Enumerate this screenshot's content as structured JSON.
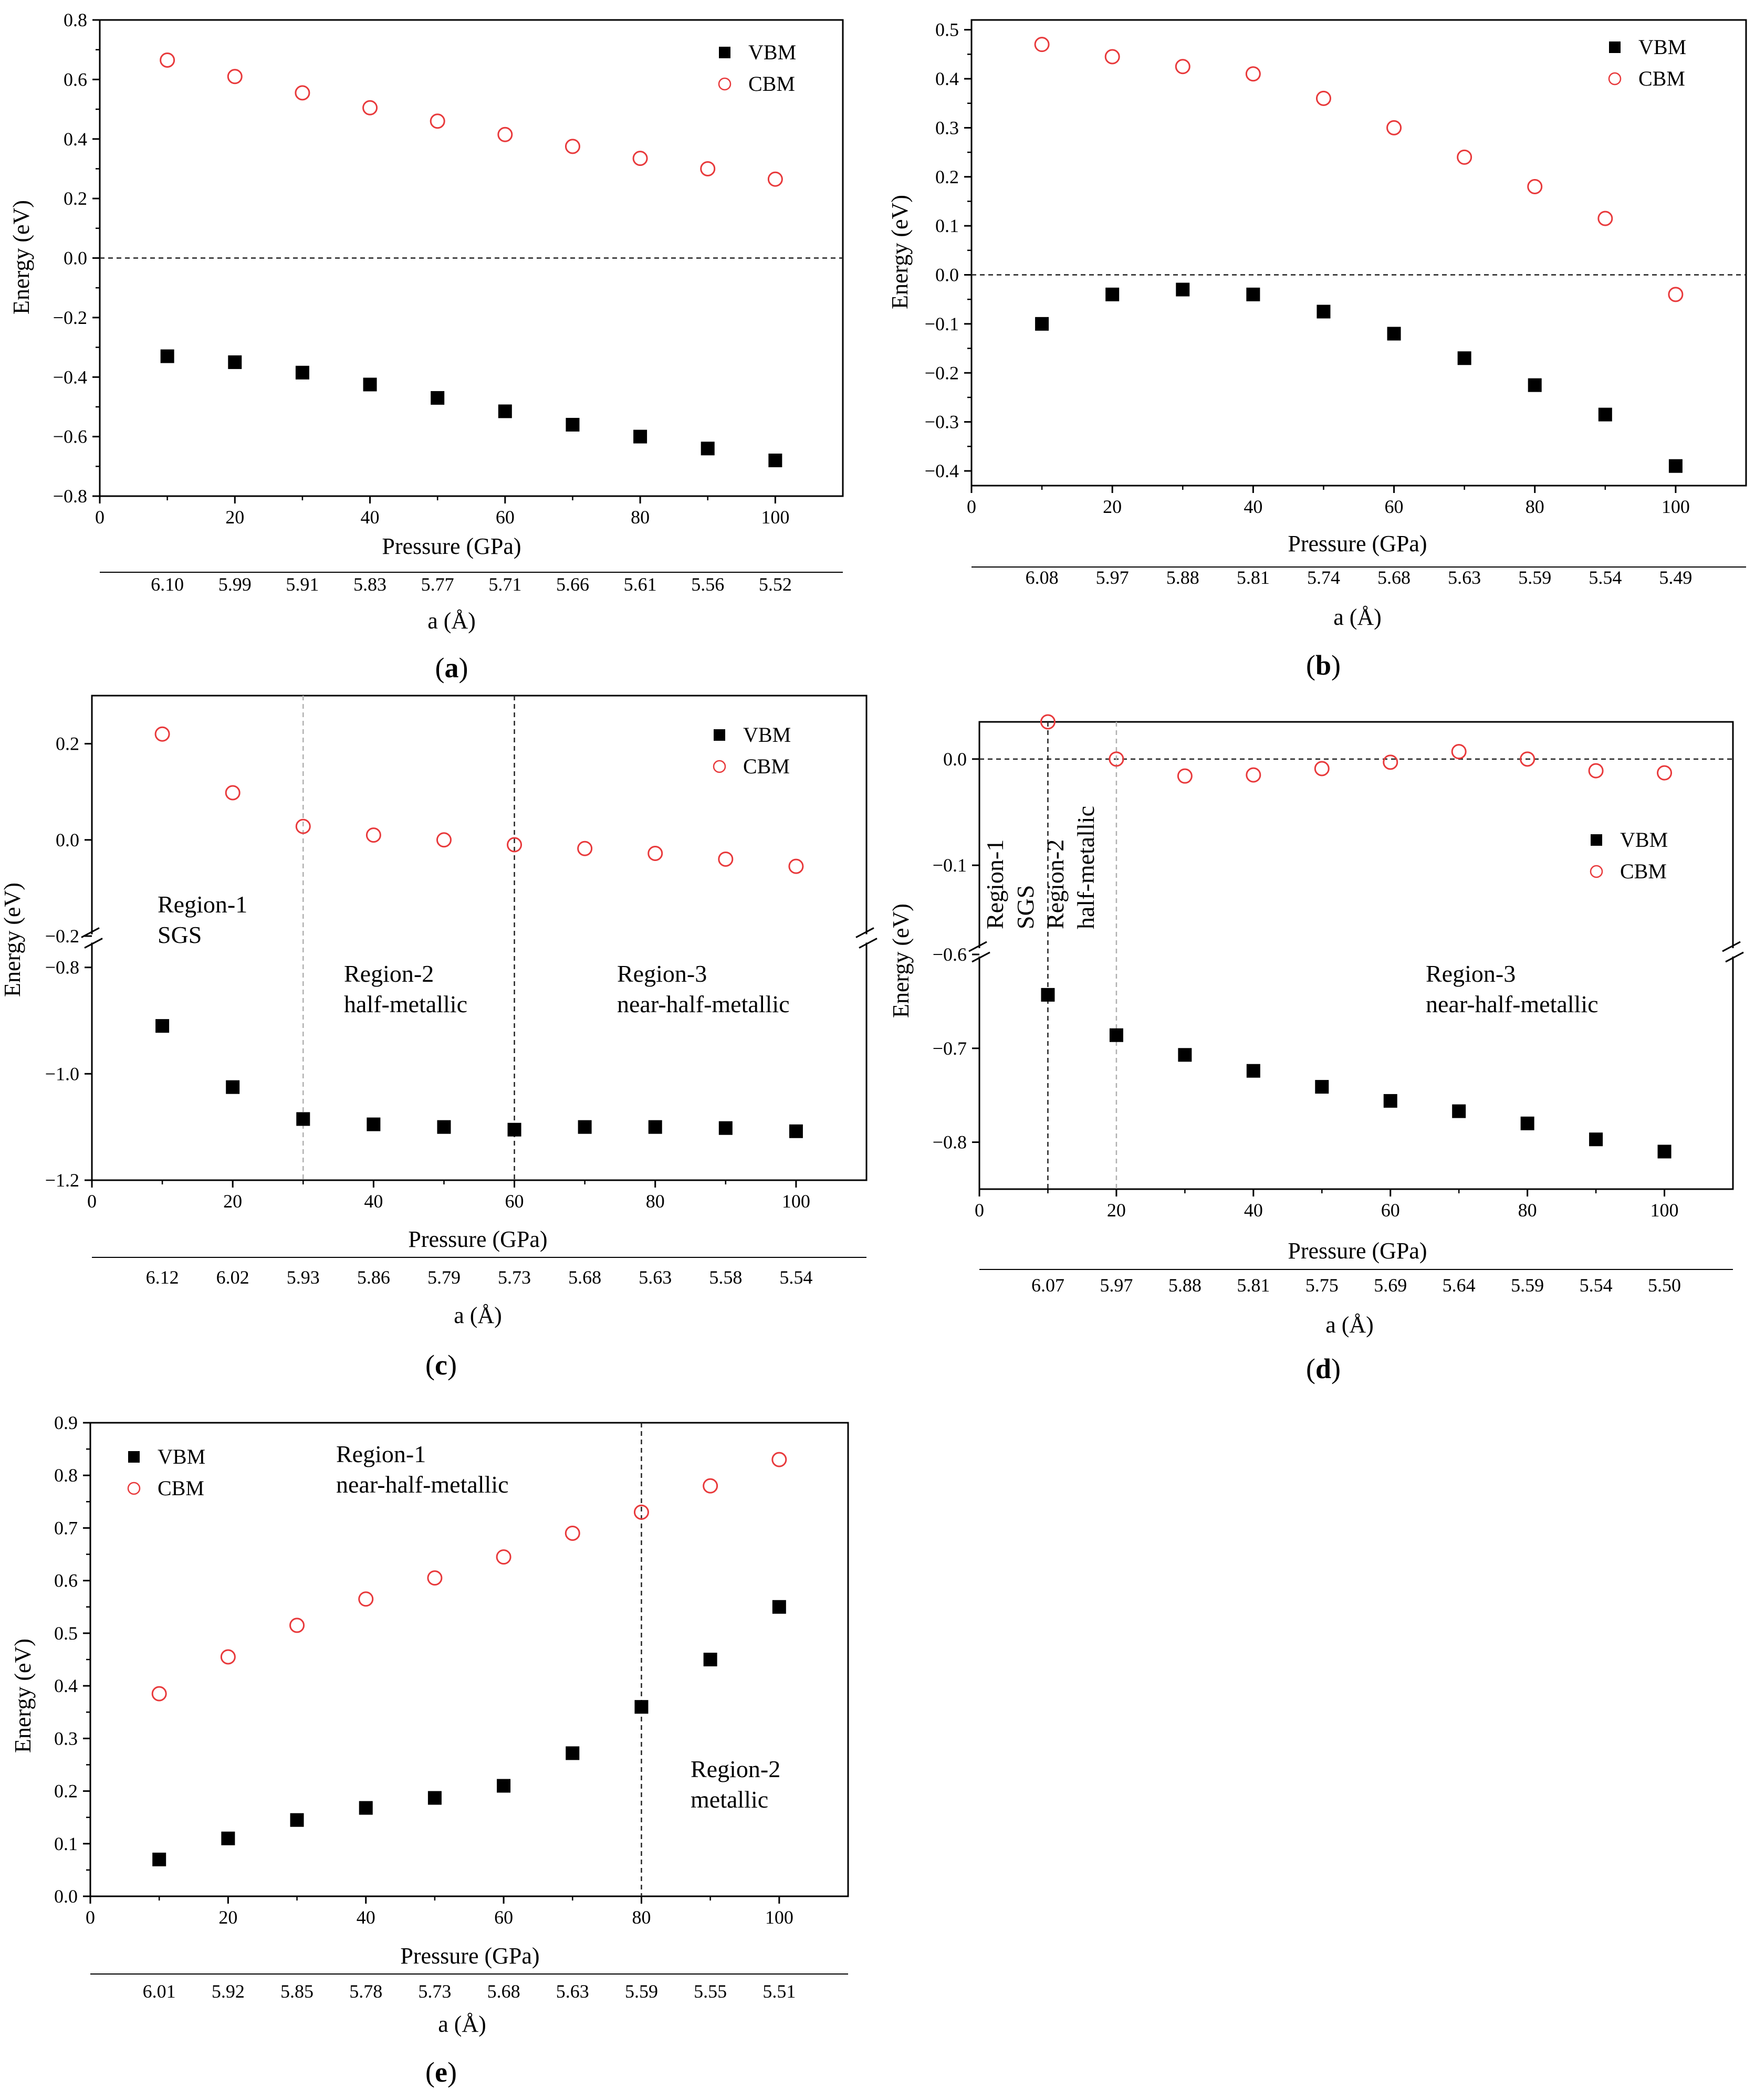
{
  "figure": {
    "panel_count": 5
  },
  "chart_data": [
    {
      "id": "a",
      "type": "scatter",
      "caption": "(a)",
      "caption_letter": "a",
      "xlabel": "Pressure (GPa)",
      "ylabel": "Energy (eV)",
      "secondary_xlabel": "a (Å)",
      "xlim": [
        0,
        110
      ],
      "ylim": [
        -0.8,
        0.8
      ],
      "xticks": [
        "0",
        "20",
        "40",
        "60",
        "80",
        "100"
      ],
      "yticks": [
        "−0.8",
        "−0.6",
        "−0.4",
        "−0.2",
        "0.0",
        "0.2",
        "0.4",
        "0.6",
        "0.8"
      ],
      "lattice_labels": [
        "6.10",
        "5.99",
        "5.91",
        "5.83",
        "5.77",
        "5.71",
        "5.66",
        "5.61",
        "5.56",
        "5.52"
      ],
      "legend": {
        "position": "top-right",
        "entries": [
          "VBM",
          "CBM"
        ]
      },
      "reference_line_y": 0.0,
      "series": [
        {
          "name": "VBM",
          "marker": "filled-square",
          "color": "#000000",
          "x": [
            10,
            20,
            30,
            40,
            50,
            60,
            70,
            80,
            90,
            100
          ],
          "y": [
            -0.33,
            -0.35,
            -0.385,
            -0.425,
            -0.47,
            -0.515,
            -0.56,
            -0.6,
            -0.64,
            -0.68
          ]
        },
        {
          "name": "CBM",
          "marker": "open-circle",
          "color": "#e8393b",
          "x": [
            10,
            20,
            30,
            40,
            50,
            60,
            70,
            80,
            90,
            100
          ],
          "y": [
            0.665,
            0.61,
            0.555,
            0.505,
            0.46,
            0.415,
            0.375,
            0.335,
            0.3,
            0.265
          ]
        }
      ]
    },
    {
      "id": "b",
      "type": "scatter",
      "caption": "(b)",
      "caption_letter": "b",
      "xlabel": "Pressure (GPa)",
      "ylabel": "Energy (eV)",
      "secondary_xlabel": "a (Å)",
      "xlim": [
        0,
        110
      ],
      "ylim": [
        -0.43,
        0.52
      ],
      "xticks": [
        "0",
        "20",
        "40",
        "60",
        "80",
        "100"
      ],
      "yticks": [
        "−0.4",
        "−0.3",
        "−0.2",
        "−0.1",
        "0.0",
        "0.1",
        "0.2",
        "0.3",
        "0.4",
        "0.5"
      ],
      "lattice_labels": [
        "6.08",
        "5.97",
        "5.88",
        "5.81",
        "5.74",
        "5.68",
        "5.63",
        "5.59",
        "5.54",
        "5.49"
      ],
      "legend": {
        "position": "top-right",
        "entries": [
          "VBM",
          "CBM"
        ]
      },
      "reference_line_y": 0.0,
      "series": [
        {
          "name": "VBM",
          "marker": "filled-square",
          "color": "#000000",
          "x": [
            10,
            20,
            30,
            40,
            50,
            60,
            70,
            80,
            90,
            100
          ],
          "y": [
            -0.1,
            -0.04,
            -0.03,
            -0.04,
            -0.075,
            -0.12,
            -0.17,
            -0.225,
            -0.285,
            -0.39
          ]
        },
        {
          "name": "CBM",
          "marker": "open-circle",
          "color": "#e8393b",
          "x": [
            10,
            20,
            30,
            40,
            50,
            60,
            70,
            80,
            90,
            100
          ],
          "y": [
            0.47,
            0.445,
            0.425,
            0.41,
            0.36,
            0.3,
            0.24,
            0.18,
            0.115,
            -0.04
          ]
        }
      ]
    },
    {
      "id": "c",
      "type": "scatter",
      "caption": "(c)",
      "caption_letter": "c",
      "xlabel": "Pressure (GPa)",
      "ylabel": "Energy (eV)",
      "secondary_xlabel": "a (Å)",
      "xlim": [
        0,
        110
      ],
      "y_break": true,
      "upper_ylim": [
        -0.2,
        0.3
      ],
      "lower_ylim": [
        -1.2,
        -0.75
      ],
      "upper_yticks": [
        {
          "v": 0.2,
          "t": "0.2"
        },
        {
          "v": 0.0,
          "t": "0.0"
        },
        {
          "v": -0.2,
          "t": "−0.2"
        }
      ],
      "lower_yticks": [
        {
          "v": -0.8,
          "t": "−0.8"
        },
        {
          "v": -1.0,
          "t": "−1.0"
        },
        {
          "v": -1.2,
          "t": "−1.2"
        }
      ],
      "xticks": [
        "0",
        "20",
        "40",
        "60",
        "80",
        "100"
      ],
      "lattice_labels": [
        "6.12",
        "6.02",
        "5.93",
        "5.86",
        "5.79",
        "5.73",
        "5.68",
        "5.63",
        "5.58",
        "5.54"
      ],
      "legend": {
        "position": "top-right",
        "entries": [
          "VBM",
          "CBM"
        ]
      },
      "vlines": [
        {
          "x": 30,
          "style": "light-dashed"
        },
        {
          "x": 60,
          "style": "dark-dashed"
        }
      ],
      "annotations": [
        {
          "lines": [
            "Region-1",
            "SGS"
          ]
        },
        {
          "lines": [
            "Region-2",
            "half-metallic"
          ]
        },
        {
          "lines": [
            "Region-3",
            "near-half-metallic"
          ]
        }
      ],
      "series": [
        {
          "name": "VBM",
          "marker": "filled-square",
          "color": "#000000",
          "x": [
            10,
            20,
            30,
            40,
            50,
            60,
            70,
            80,
            90,
            100
          ],
          "y": [
            -0.91,
            -1.025,
            -1.085,
            -1.095,
            -1.1,
            -1.105,
            -1.1,
            -1.1,
            -1.102,
            -1.108
          ]
        },
        {
          "name": "CBM",
          "marker": "open-circle",
          "color": "#e8393b",
          "x": [
            10,
            20,
            30,
            40,
            50,
            60,
            70,
            80,
            90,
            100
          ],
          "y": [
            0.22,
            0.098,
            0.028,
            0.01,
            0.0,
            -0.01,
            -0.018,
            -0.028,
            -0.04,
            -0.055
          ]
        }
      ]
    },
    {
      "id": "d",
      "type": "scatter",
      "caption": "(d)",
      "caption_letter": "d",
      "xlabel": "Pressure (GPa)",
      "ylabel": "Energy (eV)",
      "secondary_xlabel": "a (Å)",
      "xlim": [
        0,
        110
      ],
      "y_break": true,
      "upper_ylim": [
        -0.18,
        0.035
      ],
      "lower_ylim": [
        -0.85,
        -0.6
      ],
      "upper_yticks": [
        {
          "v": 0.0,
          "t": "0.0"
        },
        {
          "v": -0.1,
          "t": "−0.1"
        }
      ],
      "lower_yticks": [
        {
          "v": -0.6,
          "t": "−0.6"
        },
        {
          "v": -0.7,
          "t": "−0.7"
        },
        {
          "v": -0.8,
          "t": "−0.8"
        }
      ],
      "xticks": [
        "0",
        "20",
        "40",
        "60",
        "80",
        "100"
      ],
      "lattice_labels": [
        "6.07",
        "5.97",
        "5.88",
        "5.81",
        "5.75",
        "5.69",
        "5.64",
        "5.59",
        "5.54",
        "5.50"
      ],
      "legend": {
        "position": "middle-right",
        "entries": [
          "VBM",
          "CBM"
        ]
      },
      "reference_line_y": 0.0,
      "vlines": [
        {
          "x": 10,
          "style": "dark-dashed"
        },
        {
          "x": 20,
          "style": "light-dashed"
        }
      ],
      "annotations": [
        {
          "lines": [
            "Region-1",
            "SGS"
          ]
        },
        {
          "lines": [
            "Region-2",
            "half-metallic"
          ]
        },
        {
          "lines": [
            "Region-3",
            "near-half-metallic"
          ]
        }
      ],
      "series": [
        {
          "name": "VBM",
          "marker": "filled-square",
          "color": "#000000",
          "x": [
            10,
            20,
            30,
            40,
            50,
            60,
            70,
            80,
            90,
            100
          ],
          "y": [
            -0.643,
            -0.686,
            -0.707,
            -0.724,
            -0.741,
            -0.756,
            -0.767,
            -0.78,
            -0.797,
            -0.81
          ]
        },
        {
          "name": "CBM",
          "marker": "open-circle",
          "color": "#e8393b",
          "x": [
            10,
            20,
            30,
            40,
            50,
            60,
            70,
            80,
            90,
            100
          ],
          "y": [
            0.035,
            0.0,
            -0.016,
            -0.015,
            -0.009,
            -0.003,
            0.007,
            0.0,
            -0.011,
            -0.013
          ]
        }
      ]
    },
    {
      "id": "e",
      "type": "scatter",
      "caption": "(e)",
      "caption_letter": "e",
      "xlabel": "Pressure (GPa)",
      "ylabel": "Energy (eV)",
      "secondary_xlabel": "a (Å)",
      "xlim": [
        0,
        110
      ],
      "ylim": [
        0.0,
        0.9
      ],
      "xticks": [
        "0",
        "20",
        "40",
        "60",
        "80",
        "100"
      ],
      "yticks": [
        "0.0",
        "0.1",
        "0.2",
        "0.3",
        "0.4",
        "0.5",
        "0.6",
        "0.7",
        "0.8",
        "0.9"
      ],
      "lattice_labels": [
        "6.01",
        "5.92",
        "5.85",
        "5.78",
        "5.73",
        "5.68",
        "5.63",
        "5.59",
        "5.55",
        "5.51"
      ],
      "legend": {
        "position": "top-left",
        "entries": [
          "VBM",
          "CBM"
        ]
      },
      "vlines": [
        {
          "x": 80,
          "style": "dark-dashed"
        }
      ],
      "annotations": [
        {
          "lines": [
            "Region-1",
            "near-half-metallic"
          ]
        },
        {
          "lines": [
            "Region-2",
            "metallic"
          ]
        }
      ],
      "series": [
        {
          "name": "VBM",
          "marker": "filled-square",
          "color": "#000000",
          "x": [
            10,
            20,
            30,
            40,
            50,
            60,
            70,
            80,
            90,
            100
          ],
          "y": [
            0.07,
            0.11,
            0.145,
            0.168,
            0.187,
            0.21,
            0.272,
            0.36,
            0.45,
            0.55
          ]
        },
        {
          "name": "CBM",
          "marker": "open-circle",
          "color": "#e8393b",
          "x": [
            10,
            20,
            30,
            40,
            50,
            60,
            70,
            80,
            90,
            100
          ],
          "y": [
            0.385,
            0.455,
            0.515,
            0.565,
            0.605,
            0.645,
            0.69,
            0.73,
            0.78,
            0.83
          ]
        }
      ]
    }
  ]
}
